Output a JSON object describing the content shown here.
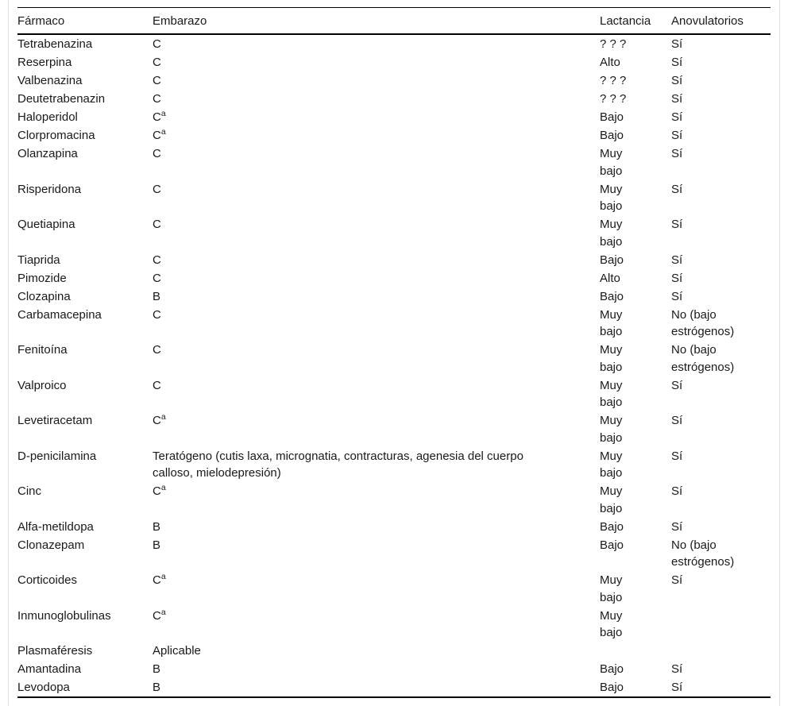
{
  "table": {
    "headers": [
      "Fármaco",
      "Embarazo",
      "Lactancia",
      "Anovulatorios"
    ],
    "rows": [
      {
        "farmaco": "Tetrabenazina",
        "embarazo": "C",
        "embarazo_sup": "",
        "lactancia": "? ? ?",
        "anovulatorios": "Sí"
      },
      {
        "farmaco": "Reserpina",
        "embarazo": "C",
        "embarazo_sup": "",
        "lactancia": "Alto",
        "anovulatorios": "Sí"
      },
      {
        "farmaco": "Valbenazina",
        "embarazo": "C",
        "embarazo_sup": "",
        "lactancia": "? ? ?",
        "anovulatorios": "Sí"
      },
      {
        "farmaco": "Deutetrabenazin",
        "embarazo": "C",
        "embarazo_sup": "",
        "lactancia": "? ? ?",
        "anovulatorios": "Sí"
      },
      {
        "farmaco": "Haloperidol",
        "embarazo": "C",
        "embarazo_sup": "a",
        "lactancia": "Bajo",
        "anovulatorios": "Sí"
      },
      {
        "farmaco": "Clorpromacina",
        "embarazo": "C",
        "embarazo_sup": "a",
        "lactancia": "Bajo",
        "anovulatorios": "Sí"
      },
      {
        "farmaco": "Olanzapina",
        "embarazo": "C",
        "embarazo_sup": "",
        "lactancia": "Muy\nbajo",
        "anovulatorios": "Sí"
      },
      {
        "farmaco": "Risperidona",
        "embarazo": "C",
        "embarazo_sup": "",
        "lactancia": "Muy\nbajo",
        "anovulatorios": "Sí"
      },
      {
        "farmaco": "Quetiapina",
        "embarazo": "C",
        "embarazo_sup": "",
        "lactancia": "Muy\nbajo",
        "anovulatorios": "Sí"
      },
      {
        "farmaco": "Tiaprida",
        "embarazo": "C",
        "embarazo_sup": "",
        "lactancia": "Bajo",
        "anovulatorios": "Sí"
      },
      {
        "farmaco": "Pimozide",
        "embarazo": "C",
        "embarazo_sup": "",
        "lactancia": "Alto",
        "anovulatorios": "Sí"
      },
      {
        "farmaco": "Clozapina",
        "embarazo": "B",
        "embarazo_sup": "",
        "lactancia": "Bajo",
        "anovulatorios": "Sí"
      },
      {
        "farmaco": "Carbamacepina",
        "embarazo": "C",
        "embarazo_sup": "",
        "lactancia": "Muy\nbajo",
        "anovulatorios": "No (bajo\nestrógenos)"
      },
      {
        "farmaco": "Fenitoína",
        "embarazo": "C",
        "embarazo_sup": "",
        "lactancia": "Muy\nbajo",
        "anovulatorios": "No (bajo\nestrógenos)"
      },
      {
        "farmaco": "Valproico",
        "embarazo": "C",
        "embarazo_sup": "",
        "lactancia": "Muy\nbajo",
        "anovulatorios": "Sí"
      },
      {
        "farmaco": "Levetiracetam",
        "embarazo": "C",
        "embarazo_sup": "a",
        "lactancia": "Muy\nbajo",
        "anovulatorios": "Sí"
      },
      {
        "farmaco": "D-penicilamina",
        "embarazo": "Teratógeno (cutis laxa, micrognatia, contracturas, agenesia del cuerpo\ncalloso, mielodepresión)",
        "embarazo_sup": "",
        "lactancia": "Muy\nbajo",
        "anovulatorios": "Sí"
      },
      {
        "farmaco": "Cinc",
        "embarazo": "C",
        "embarazo_sup": "a",
        "lactancia": "Muy\nbajo",
        "anovulatorios": "Sí"
      },
      {
        "farmaco": "Alfa-metildopa",
        "embarazo": "B",
        "embarazo_sup": "",
        "lactancia": "Bajo",
        "anovulatorios": "Sí"
      },
      {
        "farmaco": "Clonazepam",
        "embarazo": "B",
        "embarazo_sup": "",
        "lactancia": "Bajo",
        "anovulatorios": "No (bajo\nestrógenos)"
      },
      {
        "farmaco": "Corticoides",
        "embarazo": "C",
        "embarazo_sup": "a",
        "lactancia": "Muy\nbajo",
        "anovulatorios": "Sí"
      },
      {
        "farmaco": "Inmunoglobulinas",
        "embarazo": "C",
        "embarazo_sup": "a",
        "lactancia": "Muy\nbajo",
        "anovulatorios": ""
      },
      {
        "farmaco": "Plasmaféresis",
        "embarazo": "Aplicable",
        "embarazo_sup": "",
        "lactancia": "",
        "anovulatorios": ""
      },
      {
        "farmaco": "Amantadina",
        "embarazo": "B",
        "embarazo_sup": "",
        "lactancia": "Bajo",
        "anovulatorios": "Sí"
      },
      {
        "farmaco": "Levodopa",
        "embarazo": "B",
        "embarazo_sup": "",
        "lactancia": "Bajo",
        "anovulatorios": "Sí"
      }
    ],
    "colors": {
      "rule": "#000000",
      "frame_border": "#e2e2e2",
      "text": "#1a1a1a"
    }
  }
}
